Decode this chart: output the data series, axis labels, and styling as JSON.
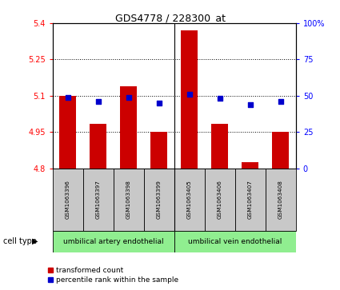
{
  "title": "GDS4778 / 228300_at",
  "samples": [
    "GSM1063396",
    "GSM1063397",
    "GSM1063398",
    "GSM1063399",
    "GSM1063405",
    "GSM1063406",
    "GSM1063407",
    "GSM1063408"
  ],
  "red_values": [
    5.1,
    4.985,
    5.14,
    4.95,
    5.37,
    4.985,
    4.825,
    4.95
  ],
  "blue_values": [
    49,
    46,
    49,
    45,
    51,
    48,
    44,
    46
  ],
  "ylim_left": [
    4.8,
    5.4
  ],
  "yticks_left": [
    4.8,
    4.95,
    5.1,
    5.25,
    5.4
  ],
  "ytick_labels_left": [
    "4.8",
    "4.95",
    "5.1",
    "5.25",
    "5.4"
  ],
  "ylim_right": [
    0,
    100
  ],
  "yticks_right": [
    0,
    25,
    50,
    75,
    100
  ],
  "ytick_labels_right": [
    "0",
    "25",
    "50",
    "75",
    "100%"
  ],
  "cell_type_groups": [
    {
      "label": "umbilical artery endothelial",
      "start": 0,
      "end": 3
    },
    {
      "label": "umbilical vein endothelial",
      "start": 4,
      "end": 7
    }
  ],
  "cell_type_label": "cell type",
  "bar_color": "#cc0000",
  "dot_color": "#0000cc",
  "bar_bottom": 4.8,
  "sample_box_color": "#c8c8c8",
  "group_fill": "#90ee90",
  "legend_red_label": "transformed count",
  "legend_blue_label": "percentile rank within the sample"
}
